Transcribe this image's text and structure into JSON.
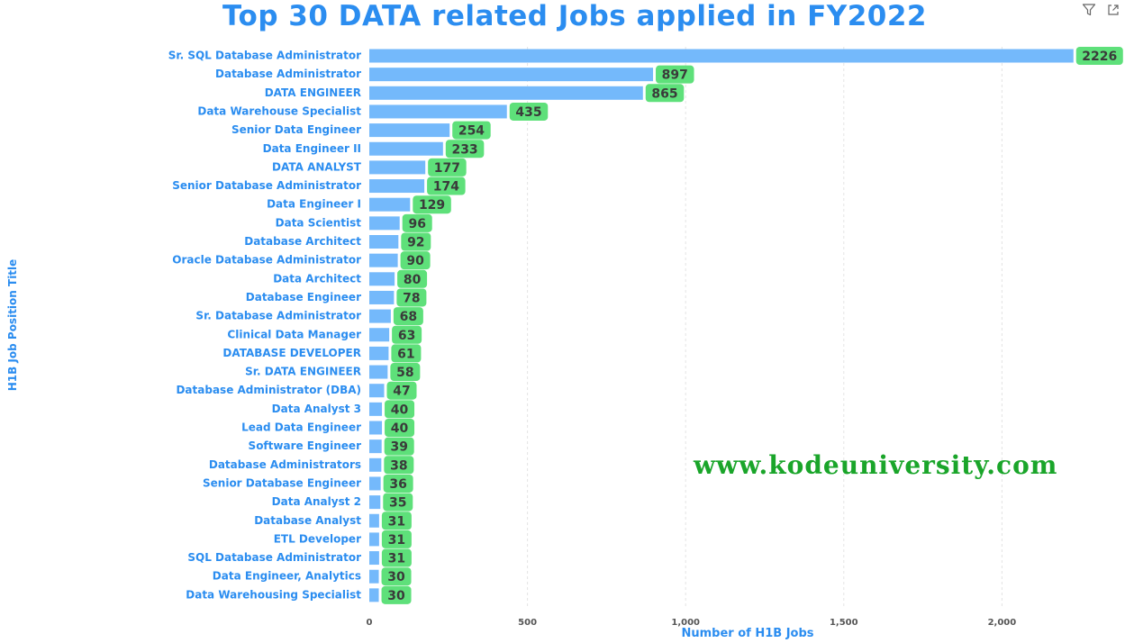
{
  "chart_data": {
    "type": "bar",
    "orientation": "horizontal",
    "title": "Top 30 DATA related Jobs applied in FY2022",
    "xlabel": "Number of H1B Jobs",
    "ylabel": "H1B Job Position Title",
    "categories": [
      "Sr. SQL Database Administrator",
      "Database Administrator",
      "DATA ENGINEER",
      "Data Warehouse Specialist",
      "Senior Data Engineer",
      "Data Engineer II",
      "DATA ANALYST",
      "Senior Database Administrator",
      "Data Engineer I",
      "Data Scientist",
      "Database Architect",
      "Oracle Database Administrator",
      "Data Architect",
      "Database Engineer",
      "Sr. Database Administrator",
      "Clinical Data Manager",
      "DATABASE DEVELOPER",
      "Sr. DATA ENGINEER",
      "Database Administrator (DBA)",
      "Data Analyst 3",
      "Lead Data Engineer",
      "Software Engineer",
      "Database Administrators",
      "Senior Database Engineer",
      "Data Analyst 2",
      "Database Analyst",
      "ETL Developer",
      "SQL Database Administrator",
      "Data Engineer, Analytics",
      "Data Warehousing Specialist"
    ],
    "values": [
      2226,
      897,
      865,
      435,
      254,
      233,
      177,
      174,
      129,
      96,
      92,
      90,
      80,
      78,
      68,
      63,
      61,
      58,
      47,
      40,
      40,
      39,
      38,
      36,
      35,
      31,
      31,
      31,
      30,
      30
    ],
    "xlim": [
      0,
      2300
    ],
    "xticks": [
      0,
      500,
      1000,
      1500,
      2000
    ],
    "xtick_labels": [
      "0",
      "500",
      "1,000",
      "1,500",
      "2,000"
    ],
    "grid": "vertical dashed",
    "legend": "none",
    "colors": {
      "bar": "#74b9fb",
      "label_bg": "#5ee07a",
      "label_text": "#3a3a3a",
      "title": "#2b8df0",
      "grid": "#e4e4e4"
    }
  },
  "watermark": "www.kodeuniversity.com",
  "icons": [
    "filter-icon",
    "focus-mode-icon"
  ]
}
